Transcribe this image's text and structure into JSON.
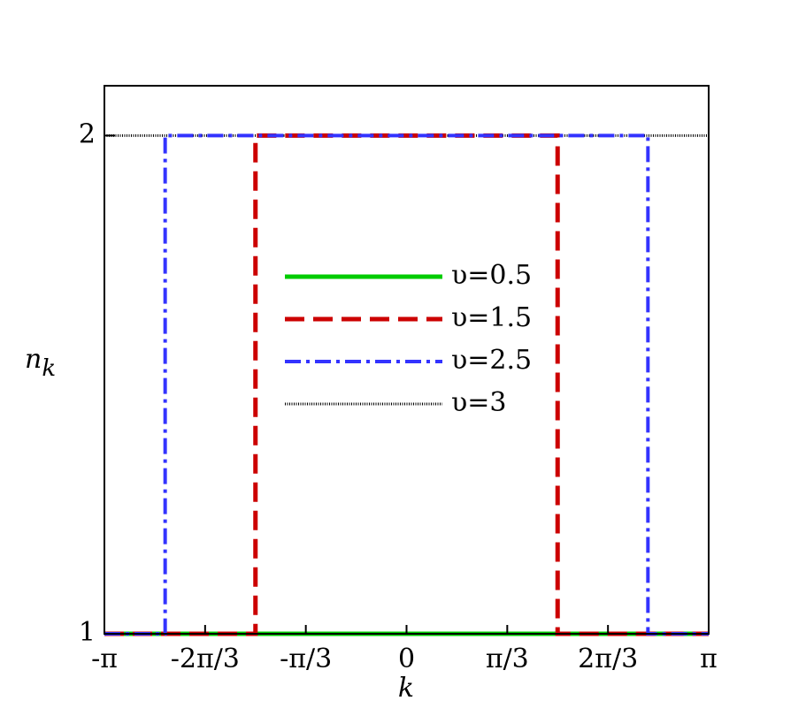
{
  "chart_data": {
    "type": "line",
    "xlabel": "k",
    "ylabel": "n",
    "ylabel_subscript": "k",
    "xlim": [
      -3.1416,
      3.1416
    ],
    "xticks": [
      {
        "value": -3.1416,
        "label": "-π"
      },
      {
        "value": -2.0944,
        "label": "-2π/3"
      },
      {
        "value": -1.0472,
        "label": "-π/3"
      },
      0,
      {
        "value": 1.0472,
        "label": "π/3"
      },
      {
        "value": 2.0944,
        "label": "2π/3"
      },
      {
        "value": 3.1416,
        "label": "π"
      }
    ],
    "ylim": [
      1,
      2.1
    ],
    "yticks": [
      1,
      2
    ],
    "legend": "center",
    "series": [
      {
        "name": "υ=0.5",
        "color": "#00cc00",
        "style": "solid",
        "x": [
          -3.1416,
          3.1416
        ],
        "values": [
          1,
          1
        ]
      },
      {
        "name": "υ=1.5",
        "color": "#cc0000",
        "style": "dashed",
        "x": [
          -3.1416,
          -1.5708,
          -1.5708,
          1.5708,
          1.5708,
          3.1416
        ],
        "values": [
          1,
          1,
          2,
          2,
          1,
          1
        ]
      },
      {
        "name": "υ=2.5",
        "color": "#3333ff",
        "style": "dashdot",
        "x": [
          -3.1416,
          -2.51,
          -2.51,
          2.51,
          2.51,
          3.1416
        ],
        "values": [
          1,
          1,
          2,
          2,
          1,
          1
        ]
      },
      {
        "name": "υ=3",
        "color": "#000000",
        "style": "dotted",
        "x": [
          -3.1416,
          3.1416
        ],
        "values": [
          2,
          2
        ]
      }
    ]
  }
}
